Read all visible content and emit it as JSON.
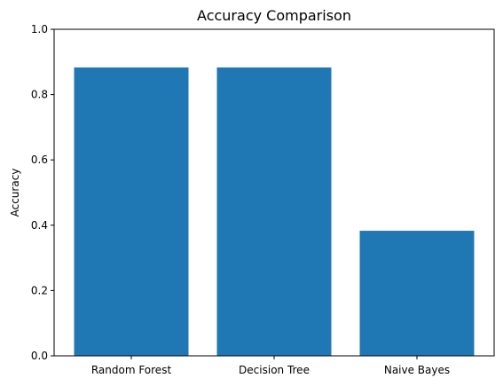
{
  "chart_data": {
    "type": "bar",
    "title": "Accuracy Comparison",
    "xlabel": "",
    "ylabel": "Accuracy",
    "categories": [
      "Random Forest",
      "Decision Tree",
      "Naive Bayes"
    ],
    "values": [
      0.883,
      0.883,
      0.383
    ],
    "ylim": [
      0,
      1
    ],
    "yticks": [
      "0.0",
      "0.2",
      "0.4",
      "0.6",
      "0.8",
      "1.0"
    ],
    "bar_color": "#1f77b4",
    "grid": false,
    "legend": "none"
  }
}
